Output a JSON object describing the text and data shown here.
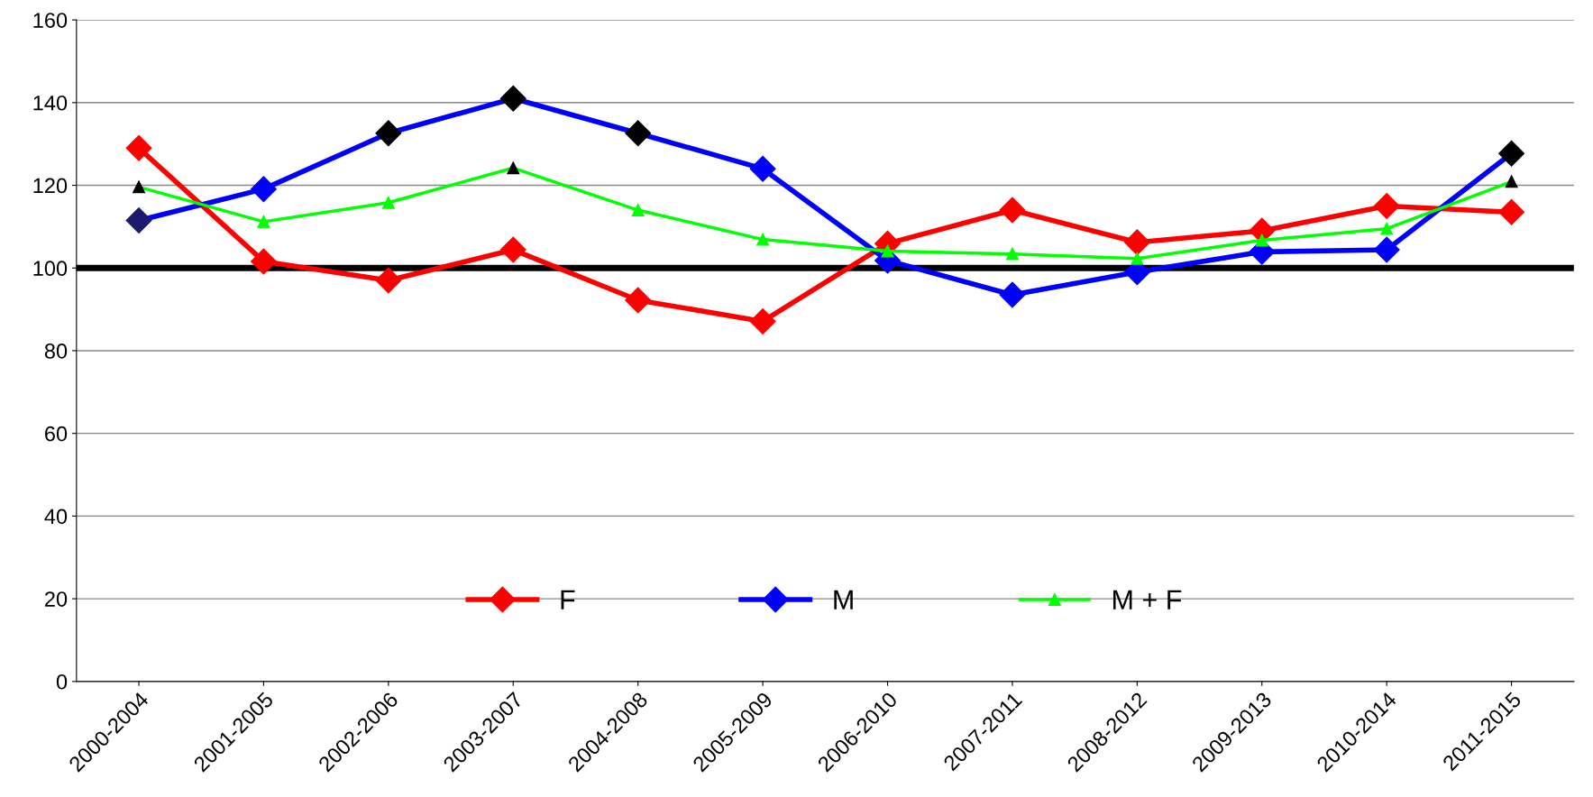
{
  "chart_data": {
    "type": "line",
    "categories": [
      "2000-2004",
      "2001-2005",
      "2002-2006",
      "2003-2007",
      "2004-2008",
      "2005-2009",
      "2006-2010",
      "2007-2011",
      "2008-2012",
      "2009-2013",
      "2010-2014",
      "2011-2015"
    ],
    "series": [
      {
        "name": "F",
        "color": "#ff0000",
        "marker": "diamond",
        "values": [
          129,
          101.6,
          97,
          104.4,
          92.2,
          87.1,
          105.9,
          114,
          106.2,
          109,
          115,
          113.5
        ]
      },
      {
        "name": "M",
        "color": "#0000ff",
        "marker": "diamond",
        "colors": [
          "#1a1a6e",
          "#0000ff",
          "#000000",
          "#000000",
          "#000000",
          "#0000ff",
          "#0000ff",
          "#0000ff",
          "#0000ff",
          "#0000ff",
          "#0000ff",
          "#000000"
        ],
        "values": [
          111.5,
          119.1,
          132.6,
          141,
          132.6,
          124,
          101.8,
          93.5,
          99,
          103.9,
          104.4,
          127.7
        ]
      },
      {
        "name": "M + F",
        "color": "#00ff00",
        "marker": "triangle",
        "colors": [
          "#000000",
          "#00ff00",
          "#00ff00",
          "#000000",
          "#00ff00",
          "#00ff00",
          "#00ff00",
          "#00ff00",
          "#00ff00",
          "#00ff00",
          "#00ff00",
          "#000000"
        ],
        "values": [
          119.6,
          111.2,
          115.8,
          124.2,
          114,
          106.9,
          104.1,
          103.4,
          102.3,
          106.7,
          109.5,
          120.9
        ]
      }
    ],
    "ylim": [
      0,
      160
    ],
    "yticks": [
      0,
      20,
      40,
      60,
      80,
      100,
      120,
      140,
      160
    ],
    "ref_lines": [
      {
        "axis": "y",
        "value": 100,
        "color": "#000000"
      }
    ],
    "grid": "y",
    "legend": "bottom",
    "line_style": "solid"
  }
}
